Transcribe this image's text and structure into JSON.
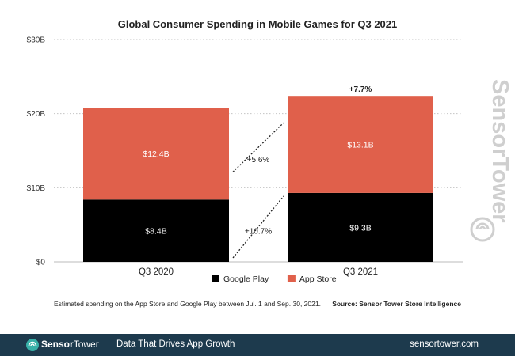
{
  "chart_data": {
    "type": "bar",
    "stacked": true,
    "title": "Global Consumer Spending in Mobile Games for Q3 2021",
    "categories": [
      "Q3 2020",
      "Q3 2021"
    ],
    "series": [
      {
        "name": "Google Play",
        "values": [
          8.4,
          9.3
        ],
        "labels": [
          "$8.4B",
          "$9.3B"
        ],
        "color": "#000000"
      },
      {
        "name": "App Store",
        "values": [
          12.4,
          13.1
        ],
        "labels": [
          "$12.4B",
          "$13.1B"
        ],
        "color": "#e0604b"
      }
    ],
    "ylim": [
      0,
      30
    ],
    "yticks": [
      "$0",
      "$10B",
      "$20B",
      "$30B"
    ],
    "ytick_values": [
      0,
      10,
      20,
      30
    ],
    "grid": true,
    "legend": "bottom-center",
    "growth_labels": {
      "google_play": "+10.7%",
      "app_store": "+5.6%",
      "total": "+7.7%"
    },
    "note": "Estimated spending on the App Store and Google Play between Jul. 1 and Sep. 30, 2021.",
    "source": "Source: Sensor Tower Store Intelligence"
  },
  "watermark": "SensorTower",
  "footer": {
    "brand_bold": "Sensor",
    "brand_rest": "Tower",
    "tagline": "Data That Drives App Growth",
    "site": "sensortower.com",
    "color": "#1d3a4d"
  }
}
